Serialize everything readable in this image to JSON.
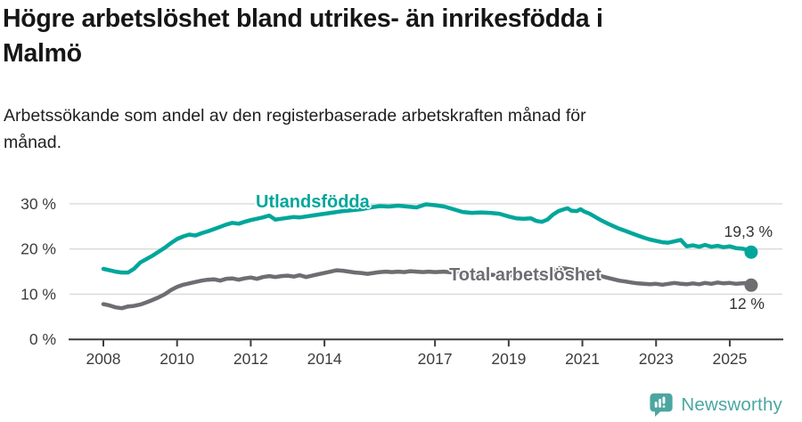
{
  "header": {
    "title_line1": "Högre arbetslöshet bland utrikes- än inrikesfödda i",
    "title_line2": "Malmö",
    "subtitle_line1": "Arbetssökande som andel av den registerbaserade arbetskraften månad för",
    "subtitle_line2": "månad."
  },
  "footer": {
    "brand": "Newsworthy",
    "logo_icon": "speech-bubble-with-bar-chart-and-exclamation"
  },
  "colors": {
    "foreign_born_line": "#00a69b",
    "total_line": "#6d6d72",
    "axis": "#3c3c3c",
    "grid": "#d9d9d9",
    "brand_teal": "#4ba6a1",
    "annotation": "#333333"
  },
  "chart_data": {
    "type": "line",
    "title": "Högre arbetslöshet bland utrikes- än inrikesfödda i Malmö",
    "subtitle": "Arbetssökande som andel av den registerbaserade arbetskraften månad för månad.",
    "xlabel": "",
    "ylabel": "",
    "grid": "horizontal",
    "legend_position": "inline-labels",
    "ylim": [
      0,
      33
    ],
    "x_range_years": [
      2008.0,
      2025.58
    ],
    "x_ticks": [
      {
        "year": 2008,
        "label": "2008"
      },
      {
        "year": 2010,
        "label": "2010"
      },
      {
        "year": 2012,
        "label": "2012"
      },
      {
        "year": 2014,
        "label": "2014"
      },
      {
        "year": 2017,
        "label": "2017"
      },
      {
        "year": 2019,
        "label": "2019"
      },
      {
        "year": 2021,
        "label": "2021"
      },
      {
        "year": 2023,
        "label": "2023"
      },
      {
        "year": 2025,
        "label": "2025"
      }
    ],
    "y_ticks": [
      {
        "value": 0,
        "label": "0 %"
      },
      {
        "value": 10,
        "label": "10 %"
      },
      {
        "value": 20,
        "label": "20 %"
      },
      {
        "value": 30,
        "label": "30 %"
      }
    ],
    "series": [
      {
        "name": "Utlandsfödda",
        "color": "#00a69b",
        "end_label": "19,3 %",
        "end_value": 19.3,
        "points": [
          [
            2008.0,
            15.6
          ],
          [
            2008.17,
            15.3
          ],
          [
            2008.33,
            15.0
          ],
          [
            2008.5,
            14.8
          ],
          [
            2008.67,
            14.8
          ],
          [
            2008.83,
            15.6
          ],
          [
            2009.0,
            17.0
          ],
          [
            2009.17,
            17.8
          ],
          [
            2009.33,
            18.5
          ],
          [
            2009.5,
            19.4
          ],
          [
            2009.67,
            20.3
          ],
          [
            2009.83,
            21.3
          ],
          [
            2010.0,
            22.2
          ],
          [
            2010.17,
            22.8
          ],
          [
            2010.33,
            23.2
          ],
          [
            2010.5,
            23.0
          ],
          [
            2010.67,
            23.5
          ],
          [
            2010.83,
            23.9
          ],
          [
            2011.0,
            24.4
          ],
          [
            2011.17,
            24.9
          ],
          [
            2011.33,
            25.4
          ],
          [
            2011.5,
            25.8
          ],
          [
            2011.67,
            25.6
          ],
          [
            2011.83,
            26.0
          ],
          [
            2012.0,
            26.4
          ],
          [
            2012.17,
            26.7
          ],
          [
            2012.33,
            27.0
          ],
          [
            2012.5,
            27.4
          ],
          [
            2012.67,
            26.5
          ],
          [
            2012.83,
            26.7
          ],
          [
            2013.0,
            26.9
          ],
          [
            2013.17,
            27.1
          ],
          [
            2013.33,
            27.0
          ],
          [
            2013.5,
            27.2
          ],
          [
            2013.67,
            27.4
          ],
          [
            2013.83,
            27.6
          ],
          [
            2014.0,
            27.8
          ],
          [
            2014.25,
            28.1
          ],
          [
            2014.5,
            28.4
          ],
          [
            2014.75,
            28.6
          ],
          [
            2015.0,
            28.8
          ],
          [
            2015.25,
            29.2
          ],
          [
            2015.5,
            29.5
          ],
          [
            2015.75,
            29.4
          ],
          [
            2016.0,
            29.6
          ],
          [
            2016.25,
            29.4
          ],
          [
            2016.5,
            29.2
          ],
          [
            2016.75,
            29.9
          ],
          [
            2017.0,
            29.7
          ],
          [
            2017.25,
            29.4
          ],
          [
            2017.5,
            28.8
          ],
          [
            2017.75,
            28.2
          ],
          [
            2018.0,
            28.0
          ],
          [
            2018.25,
            28.1
          ],
          [
            2018.5,
            28.0
          ],
          [
            2018.75,
            27.8
          ],
          [
            2019.0,
            27.2
          ],
          [
            2019.2,
            26.8
          ],
          [
            2019.4,
            26.7
          ],
          [
            2019.6,
            26.8
          ],
          [
            2019.75,
            26.2
          ],
          [
            2019.9,
            26.0
          ],
          [
            2020.05,
            26.5
          ],
          [
            2020.2,
            27.6
          ],
          [
            2020.35,
            28.4
          ],
          [
            2020.5,
            28.8
          ],
          [
            2020.6,
            29.0
          ],
          [
            2020.7,
            28.5
          ],
          [
            2020.85,
            28.4
          ],
          [
            2020.95,
            28.8
          ],
          [
            2021.05,
            28.3
          ],
          [
            2021.2,
            27.8
          ],
          [
            2021.35,
            27.1
          ],
          [
            2021.5,
            26.4
          ],
          [
            2021.67,
            25.7
          ],
          [
            2021.83,
            25.1
          ],
          [
            2022.0,
            24.5
          ],
          [
            2022.17,
            24.0
          ],
          [
            2022.33,
            23.5
          ],
          [
            2022.5,
            23.0
          ],
          [
            2022.67,
            22.5
          ],
          [
            2022.83,
            22.1
          ],
          [
            2023.0,
            21.8
          ],
          [
            2023.17,
            21.5
          ],
          [
            2023.33,
            21.4
          ],
          [
            2023.5,
            21.7
          ],
          [
            2023.67,
            22.0
          ],
          [
            2023.83,
            20.6
          ],
          [
            2024.0,
            20.8
          ],
          [
            2024.17,
            20.5
          ],
          [
            2024.33,
            20.9
          ],
          [
            2024.5,
            20.5
          ],
          [
            2024.67,
            20.7
          ],
          [
            2024.83,
            20.4
          ],
          [
            2025.0,
            20.6
          ],
          [
            2025.17,
            20.2
          ],
          [
            2025.33,
            20.1
          ],
          [
            2025.5,
            19.8
          ],
          [
            2025.58,
            19.3
          ]
        ]
      },
      {
        "name": "Total arbetslöshet",
        "color": "#6d6d72",
        "end_label": "12 %",
        "end_value": 12.0,
        "points": [
          [
            2008.0,
            7.8
          ],
          [
            2008.17,
            7.5
          ],
          [
            2008.33,
            7.1
          ],
          [
            2008.5,
            6.9
          ],
          [
            2008.67,
            7.3
          ],
          [
            2008.83,
            7.4
          ],
          [
            2009.0,
            7.7
          ],
          [
            2009.17,
            8.2
          ],
          [
            2009.33,
            8.7
          ],
          [
            2009.5,
            9.3
          ],
          [
            2009.67,
            10.0
          ],
          [
            2009.83,
            10.9
          ],
          [
            2010.0,
            11.6
          ],
          [
            2010.17,
            12.1
          ],
          [
            2010.33,
            12.4
          ],
          [
            2010.5,
            12.7
          ],
          [
            2010.67,
            13.0
          ],
          [
            2010.83,
            13.2
          ],
          [
            2011.0,
            13.3
          ],
          [
            2011.17,
            13.0
          ],
          [
            2011.33,
            13.4
          ],
          [
            2011.5,
            13.5
          ],
          [
            2011.67,
            13.2
          ],
          [
            2011.83,
            13.5
          ],
          [
            2012.0,
            13.7
          ],
          [
            2012.17,
            13.4
          ],
          [
            2012.33,
            13.8
          ],
          [
            2012.5,
            14.0
          ],
          [
            2012.67,
            13.8
          ],
          [
            2012.83,
            14.0
          ],
          [
            2013.0,
            14.1
          ],
          [
            2013.17,
            13.9
          ],
          [
            2013.33,
            14.2
          ],
          [
            2013.5,
            13.8
          ],
          [
            2013.67,
            14.1
          ],
          [
            2013.83,
            14.4
          ],
          [
            2014.0,
            14.7
          ],
          [
            2014.17,
            15.0
          ],
          [
            2014.33,
            15.3
          ],
          [
            2014.5,
            15.2
          ],
          [
            2014.67,
            15.0
          ],
          [
            2014.83,
            14.8
          ],
          [
            2015.0,
            14.7
          ],
          [
            2015.17,
            14.5
          ],
          [
            2015.33,
            14.7
          ],
          [
            2015.5,
            14.9
          ],
          [
            2015.67,
            15.0
          ],
          [
            2015.83,
            14.9
          ],
          [
            2016.0,
            15.0
          ],
          [
            2016.17,
            14.9
          ],
          [
            2016.33,
            15.1
          ],
          [
            2016.5,
            15.0
          ],
          [
            2016.67,
            14.9
          ],
          [
            2016.83,
            15.0
          ],
          [
            2017.0,
            14.9
          ],
          [
            2017.25,
            15.0
          ],
          [
            2017.5,
            14.8
          ],
          [
            2017.75,
            14.6
          ],
          [
            2018.0,
            14.5
          ],
          [
            2018.25,
            14.4
          ],
          [
            2018.5,
            14.3
          ],
          [
            2018.75,
            14.2
          ],
          [
            2019.0,
            14.2
          ],
          [
            2019.25,
            14.1
          ],
          [
            2019.5,
            14.0
          ],
          [
            2019.75,
            14.2
          ],
          [
            2020.0,
            14.5
          ],
          [
            2020.2,
            15.2
          ],
          [
            2020.4,
            15.8
          ],
          [
            2020.6,
            15.6
          ],
          [
            2020.8,
            15.3
          ],
          [
            2021.0,
            15.0
          ],
          [
            2021.25,
            14.5
          ],
          [
            2021.5,
            14.0
          ],
          [
            2021.75,
            13.5
          ],
          [
            2022.0,
            13.0
          ],
          [
            2022.17,
            12.8
          ],
          [
            2022.33,
            12.6
          ],
          [
            2022.5,
            12.4
          ],
          [
            2022.67,
            12.3
          ],
          [
            2022.83,
            12.2
          ],
          [
            2023.0,
            12.3
          ],
          [
            2023.17,
            12.1
          ],
          [
            2023.33,
            12.3
          ],
          [
            2023.5,
            12.5
          ],
          [
            2023.67,
            12.3
          ],
          [
            2023.83,
            12.2
          ],
          [
            2024.0,
            12.4
          ],
          [
            2024.17,
            12.2
          ],
          [
            2024.33,
            12.5
          ],
          [
            2024.5,
            12.3
          ],
          [
            2024.67,
            12.6
          ],
          [
            2024.83,
            12.4
          ],
          [
            2025.0,
            12.5
          ],
          [
            2025.17,
            12.3
          ],
          [
            2025.33,
            12.4
          ],
          [
            2025.5,
            12.5
          ],
          [
            2025.58,
            12.0
          ]
        ]
      }
    ]
  }
}
